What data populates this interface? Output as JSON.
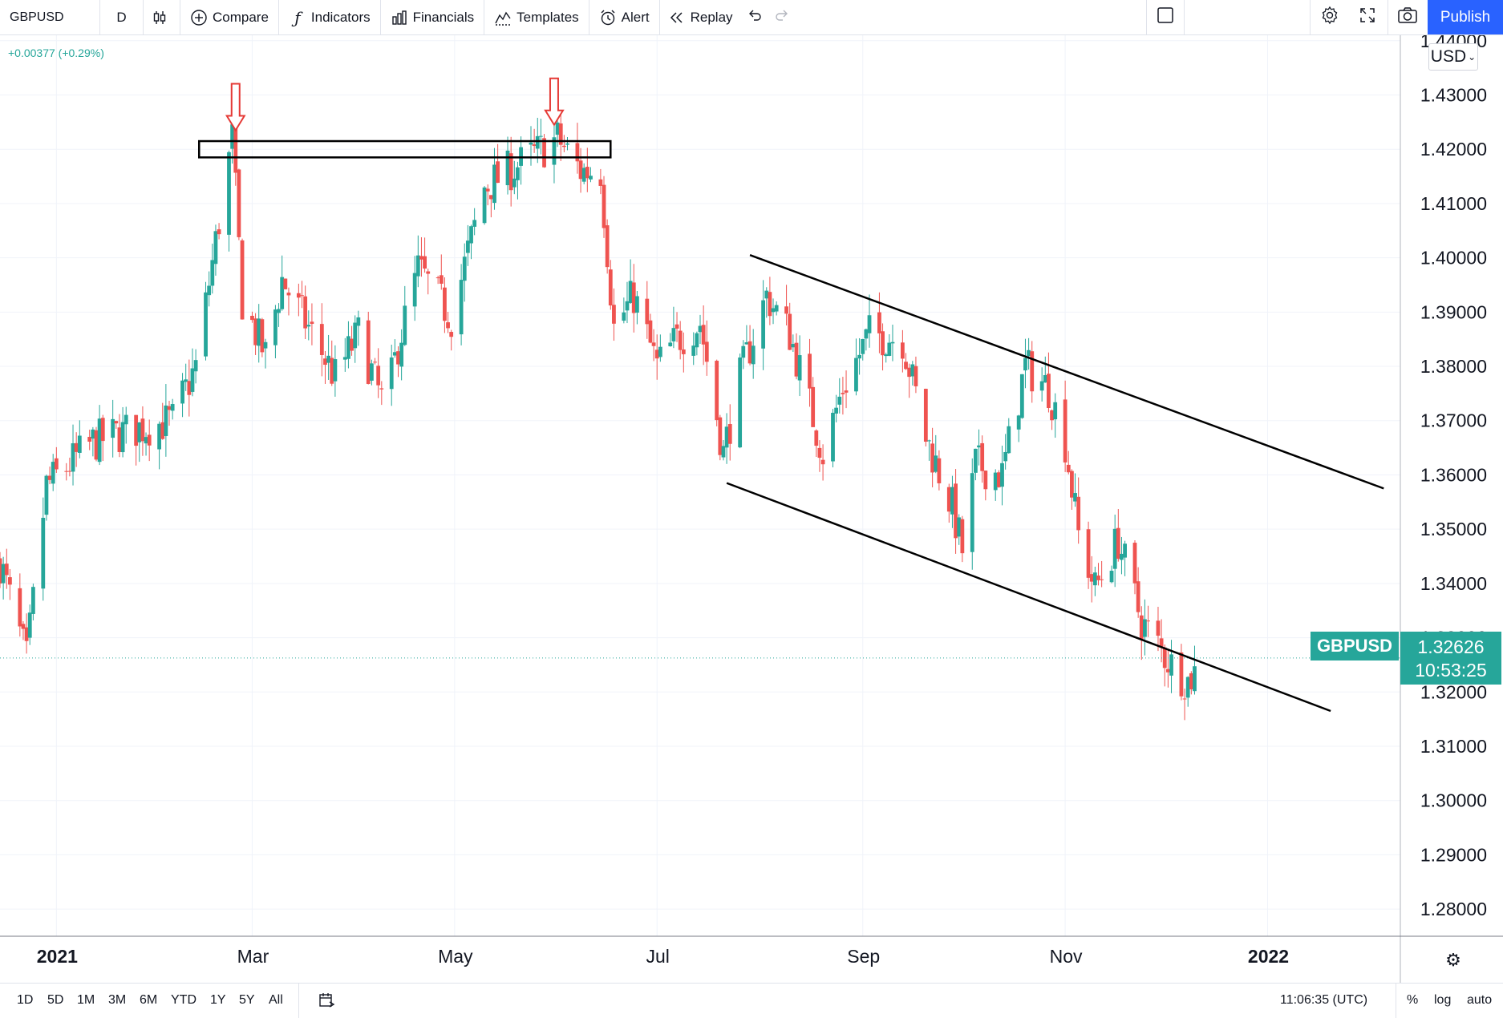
{
  "toolbar": {
    "symbol": "GBPUSD",
    "interval": "D",
    "compare": "Compare",
    "indicators": "Indicators",
    "financials": "Financials",
    "templates": "Templates",
    "alert": "Alert",
    "replay": "Replay",
    "publish": "Publish"
  },
  "legend": {
    "change": "+0.00377 (+0.29%)"
  },
  "currency": "USD",
  "price_label": {
    "symbol": "GBPUSD",
    "price": "1.32626",
    "countdown": "10:53:25"
  },
  "bottom": {
    "ranges": [
      "1D",
      "5D",
      "1M",
      "3M",
      "6M",
      "YTD",
      "1Y",
      "5Y",
      "All"
    ],
    "time": "11:06:35 (UTC)",
    "percent": "%",
    "log": "log",
    "auto": "auto"
  },
  "colors": {
    "up": "#26a69a",
    "down": "#ef5350",
    "accent": "#2962ff",
    "annotation": "#e53935"
  },
  "chart_data": {
    "type": "candlestick",
    "symbol": "GBPUSD",
    "interval": "1D",
    "x_range": [
      "2020-12-15",
      "2022-02-10"
    ],
    "ylim": [
      1.275,
      1.441
    ],
    "y_ticks": [
      "1.28000",
      "1.29000",
      "1.30000",
      "1.31000",
      "1.32000",
      "1.33000",
      "1.34000",
      "1.35000",
      "1.36000",
      "1.37000",
      "1.38000",
      "1.39000",
      "1.40000",
      "1.41000",
      "1.42000",
      "1.43000",
      "1.44000"
    ],
    "x_ticks": [
      {
        "date": "2021-01-01",
        "label": "2021",
        "major": true
      },
      {
        "date": "2021-03-01",
        "label": "Mar",
        "major": false
      },
      {
        "date": "2021-05-01",
        "label": "May",
        "major": false
      },
      {
        "date": "2021-07-01",
        "label": "Jul",
        "major": false
      },
      {
        "date": "2021-09-01",
        "label": "Sep",
        "major": false
      },
      {
        "date": "2021-11-01",
        "label": "Nov",
        "major": false
      },
      {
        "date": "2022-01-01",
        "label": "2022",
        "major": true
      }
    ],
    "last_price": 1.32626,
    "path": [
      [
        "2020-12-15",
        1.344
      ],
      [
        "2020-12-23",
        1.326
      ],
      [
        "2020-12-29",
        1.358
      ],
      [
        "2021-01-12",
        1.366
      ],
      [
        "2021-01-22",
        1.368
      ],
      [
        "2021-02-05",
        1.37
      ],
      [
        "2021-02-12",
        1.38
      ],
      [
        "2021-02-23",
        1.422
      ],
      [
        "2021-02-26",
        1.392
      ],
      [
        "2021-03-05",
        1.382
      ],
      [
        "2021-03-10",
        1.396
      ],
      [
        "2021-03-19",
        1.386
      ],
      [
        "2021-03-26",
        1.378
      ],
      [
        "2021-04-02",
        1.386
      ],
      [
        "2021-04-10",
        1.372
      ],
      [
        "2021-04-14",
        1.384
      ],
      [
        "2021-04-20",
        1.398
      ],
      [
        "2021-04-30",
        1.389
      ],
      [
        "2021-05-10",
        1.413
      ],
      [
        "2021-05-20",
        1.417
      ],
      [
        "2021-06-01",
        1.422
      ],
      [
        "2021-06-08",
        1.416
      ],
      [
        "2021-06-14",
        1.416
      ],
      [
        "2021-06-18",
        1.387
      ],
      [
        "2021-06-24",
        1.393
      ],
      [
        "2021-07-01",
        1.38
      ],
      [
        "2021-07-07",
        1.385
      ],
      [
        "2021-07-14",
        1.388
      ],
      [
        "2021-07-21",
        1.364
      ],
      [
        "2021-07-26",
        1.378
      ],
      [
        "2021-08-03",
        1.393
      ],
      [
        "2021-08-10",
        1.386
      ],
      [
        "2021-08-20",
        1.364
      ],
      [
        "2021-08-26",
        1.376
      ],
      [
        "2021-09-03",
        1.386
      ],
      [
        "2021-09-13",
        1.385
      ],
      [
        "2021-09-20",
        1.367
      ],
      [
        "2021-09-28",
        1.354
      ],
      [
        "2021-10-01",
        1.346
      ],
      [
        "2021-10-05",
        1.362
      ],
      [
        "2021-10-13",
        1.36
      ],
      [
        "2021-10-20",
        1.38
      ],
      [
        "2021-10-27",
        1.376
      ],
      [
        "2021-11-01",
        1.366
      ],
      [
        "2021-11-05",
        1.349
      ],
      [
        "2021-11-10",
        1.339
      ],
      [
        "2021-11-17",
        1.348
      ],
      [
        "2021-11-24",
        1.333
      ],
      [
        "2021-12-03",
        1.325
      ],
      [
        "2021-12-08",
        1.322
      ],
      [
        "2021-12-13",
        1.326
      ]
    ]
  },
  "annotations": {
    "resistance_box": {
      "from": "2021-02-13",
      "to": "2021-06-17",
      "top": 1.4215,
      "bottom": 1.4185
    },
    "arrows": [
      {
        "date": "2021-02-24",
        "price": 1.4235
      },
      {
        "date": "2021-05-31",
        "price": 1.4245
      }
    ],
    "channel_upper": [
      [
        "2021-07-29",
        1.4005
      ],
      [
        "2022-02-05",
        1.3575
      ]
    ],
    "channel_lower": [
      [
        "2021-07-22",
        1.3585
      ],
      [
        "2022-01-20",
        1.3165
      ]
    ]
  }
}
